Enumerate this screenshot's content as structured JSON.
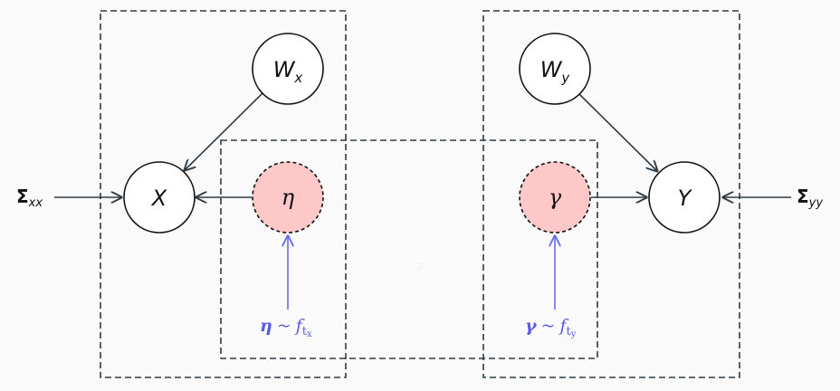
{
  "nodes": {
    "wx": {
      "main": "W",
      "sub": "x"
    },
    "wy": {
      "main": "W",
      "sub": "y"
    },
    "x": {
      "main": "X"
    },
    "y": {
      "main": "Y"
    },
    "eta": {
      "main": "η"
    },
    "gamma": {
      "main": "γ"
    }
  },
  "inputs": {
    "sigma_xx": {
      "main": "Σ",
      "sub": "xx"
    },
    "sigma_yy": {
      "main": "Σ",
      "sub": "yy"
    }
  },
  "priors": {
    "eta": {
      "lhs": "η",
      "op": "~",
      "f": "f",
      "t": "t",
      "sub": "x"
    },
    "gamma": {
      "lhs": "γ",
      "op": "~",
      "f": "f",
      "t": "t",
      "sub": "y"
    }
  },
  "shared_plate_label": "z",
  "colors": {
    "latent_fill": "#ffc8c8",
    "prior_text": "#5a5ae6",
    "edge": "#2f3b44",
    "plate": "#2f3b44"
  }
}
